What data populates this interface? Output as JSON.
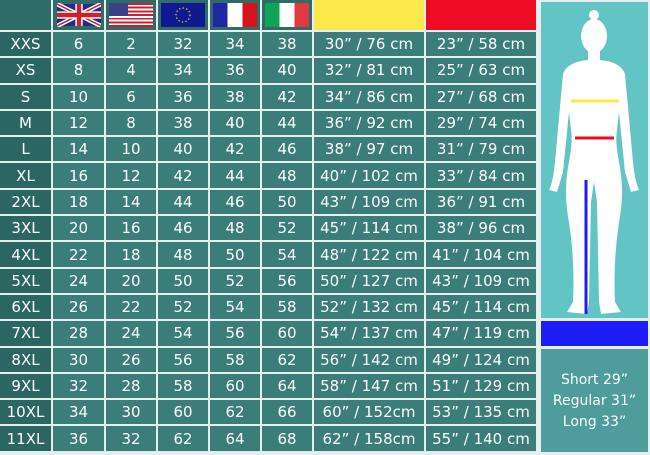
{
  "header": {
    "flags": [
      "uk-flag",
      "us-flag",
      "eu-flag",
      "france-flag",
      "italy-flag"
    ],
    "hip_color": "#fbe94a",
    "waist_color": "#ee0c25",
    "length_color": "#1c1cf5"
  },
  "rows": [
    [
      "XXS",
      "6",
      "2",
      "32",
      "34",
      "38",
      "30” / 76 cm",
      "23” / 58 cm"
    ],
    [
      "XS",
      "8",
      "4",
      "34",
      "36",
      "40",
      "32” / 81 cm",
      "25” / 63 cm"
    ],
    [
      "S",
      "10",
      "6",
      "36",
      "38",
      "42",
      "34” / 86 cm",
      "27” / 68 cm"
    ],
    [
      "M",
      "12",
      "8",
      "38",
      "40",
      "44",
      "36” / 92 cm",
      "29” / 74 cm"
    ],
    [
      "L",
      "14",
      "10",
      "40",
      "42",
      "46",
      "38” / 97 cm",
      "31” / 79 cm"
    ],
    [
      "XL",
      "16",
      "12",
      "42",
      "44",
      "48",
      "40” / 102 cm",
      "33” / 84 cm"
    ],
    [
      "2XL",
      "18",
      "14",
      "44",
      "46",
      "50",
      "43” / 109 cm",
      "36” / 91 cm"
    ],
    [
      "3XL",
      "20",
      "16",
      "46",
      "48",
      "52",
      "45” / 114 cm",
      "38” / 96 cm"
    ],
    [
      "4XL",
      "22",
      "18",
      "48",
      "50",
      "54",
      "48” / 122 cm",
      "41” / 104 cm"
    ],
    [
      "5XL",
      "24",
      "20",
      "50",
      "52",
      "56",
      "50” / 127 cm",
      "43” / 109 cm"
    ],
    [
      "6XL",
      "26",
      "22",
      "52",
      "54",
      "58",
      "52” / 132 cm",
      "45” / 114 cm"
    ],
    [
      "7XL",
      "28",
      "24",
      "54",
      "56",
      "60",
      "54” / 137 cm",
      "47” / 119 cm"
    ],
    [
      "8XL",
      "30",
      "26",
      "56",
      "58",
      "62",
      "56” / 142 cm",
      "49” / 124 cm"
    ],
    [
      "9XL",
      "32",
      "28",
      "58",
      "60",
      "64",
      "58” / 147 cm",
      "51” / 129 cm"
    ],
    [
      "10XL",
      "34",
      "30",
      "60",
      "62",
      "66",
      "60” / 152cm",
      "53” / 135 cm"
    ],
    [
      "11XL",
      "36",
      "32",
      "62",
      "64",
      "68",
      "62” / 158cm",
      "55” / 140 cm"
    ]
  ],
  "lengths": [
    "Short 29”",
    "Regular 31”",
    "Long 33”"
  ]
}
